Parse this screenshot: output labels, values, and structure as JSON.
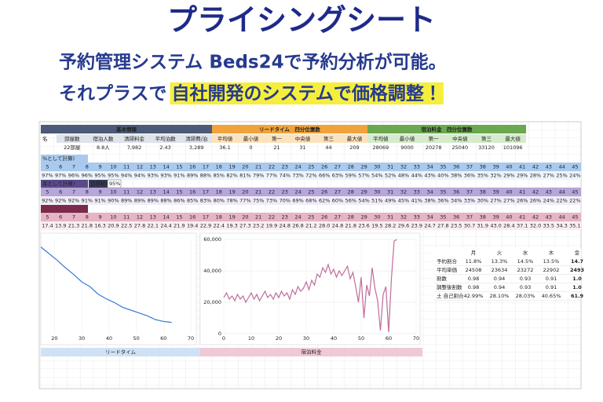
{
  "header": {
    "title": "プライシングシート",
    "line1": "予約管理システム Beds24で予約分析が可能。",
    "line2_plain": "それプラスで",
    "line2_highlight": "自社開発のシステムで価格調整！"
  },
  "sheet": {
    "name_stub": "名",
    "groups": [
      {
        "title": "基本情報",
        "headers": [
          "部屋数",
          "宿泊人数",
          "清掃料金",
          "平均泊数",
          "清掃費/泊"
        ],
        "values": [
          "22部屋",
          "8.8人",
          "7,982",
          "2.43",
          "3,289"
        ]
      },
      {
        "title": "リードタイム　四分位置数",
        "headers": [
          "平均値",
          "最小値",
          "第一",
          "中央値",
          "第三",
          "最大値"
        ],
        "values": [
          "36.1",
          "0",
          "21",
          "31",
          "44",
          "209"
        ]
      },
      {
        "title": "宿泊料金　四分位置数",
        "headers": [
          "平均値",
          "最小値",
          "第一",
          "中央値",
          "第三",
          "最大値"
        ],
        "values": [
          "28069",
          "9000",
          "20278",
          "25040",
          "33120",
          "101096"
        ]
      }
    ],
    "blocks": [
      {
        "label": "%として計算)",
        "numbers": [
          "5",
          "6",
          "7",
          "8",
          "9",
          "10",
          "11",
          "12",
          "13",
          "14",
          "15",
          "16",
          "17",
          "18",
          "19",
          "20",
          "21",
          "22",
          "23",
          "24",
          "25",
          "26",
          "27",
          "28",
          "29",
          "30",
          "31",
          "32",
          "33",
          "34",
          "35",
          "36",
          "37",
          "38",
          "39",
          "40",
          "41",
          "42",
          "43",
          "44",
          "45"
        ],
        "rates": [
          "97%",
          "97%",
          "96%",
          "96%",
          "95%",
          "95%",
          "94%",
          "94%",
          "93%",
          "93%",
          "91%",
          "89%",
          "88%",
          "85%",
          "82%",
          "81%",
          "79%",
          "77%",
          "74%",
          "73%",
          "72%",
          "66%",
          "63%",
          "59%",
          "57%",
          "54%",
          "52%",
          "48%",
          "44%",
          "43%",
          "40%",
          "38%",
          "36%",
          "35%",
          "32%",
          "29%",
          "29%",
          "28%",
          "27%",
          "25%",
          "24%"
        ]
      },
      {
        "label": "率として計算)",
        "target_label": "目標稼働率",
        "target": "95%",
        "numbers": [
          "5",
          "6",
          "7",
          "8",
          "9",
          "10",
          "11",
          "12",
          "13",
          "14",
          "15",
          "16",
          "17",
          "18",
          "19",
          "20",
          "21",
          "22",
          "23",
          "24",
          "25",
          "26",
          "27",
          "28",
          "29",
          "30",
          "31",
          "32",
          "33",
          "34",
          "35",
          "36",
          "37",
          "38",
          "39",
          "40",
          "41",
          "42",
          "43",
          "44",
          "45"
        ],
        "rates": [
          "92%",
          "92%",
          "92%",
          "91%",
          "91%",
          "90%",
          "89%",
          "89%",
          "89%",
          "88%",
          "86%",
          "85%",
          "83%",
          "80%",
          "78%",
          "77%",
          "75%",
          "73%",
          "70%",
          "69%",
          "68%",
          "62%",
          "60%",
          "56%",
          "54%",
          "51%",
          "49%",
          "45%",
          "41%",
          "38%",
          "36%",
          "34%",
          "33%",
          "30%",
          "27%",
          "27%",
          "26%",
          "26%",
          "24%",
          "22%",
          "22%"
        ]
      },
      {
        "numbers": [
          "5",
          "6",
          "7",
          "8",
          "9",
          "10",
          "11",
          "12",
          "13",
          "14",
          "15",
          "16",
          "17",
          "18",
          "19",
          "20",
          "21",
          "22",
          "23",
          "24",
          "25",
          "26",
          "27",
          "28",
          "29",
          "30",
          "31",
          "32",
          "33",
          "34",
          "35",
          "36",
          "37",
          "38",
          "39",
          "40",
          "41",
          "42",
          "43",
          "44",
          "45"
        ],
        "rates": [
          "17.4",
          "13.9",
          "21.3",
          "21.8",
          "16.3",
          "20.9",
          "22.5",
          "27.8",
          "22.1",
          "24.4",
          "21.9",
          "19.4",
          "22.9",
          "22.4",
          "19.3",
          "27.3",
          "23.2",
          "19.9",
          "24.8",
          "26.8",
          "21.2",
          "28.0",
          "24.8",
          "21.8",
          "23.6",
          "19.5",
          "28.2",
          "29.6",
          "23.9",
          "24.7",
          "27.8",
          "23.5",
          "30.7",
          "31.9",
          "43.0",
          "28.4",
          "37.1",
          "32.0",
          "33.5",
          "34.3",
          "35.1"
        ]
      }
    ],
    "weekday_table": {
      "columns": [
        "月",
        "火",
        "水",
        "木",
        "金"
      ],
      "rows": [
        {
          "label": "予約割合",
          "cells": [
            "11.8%",
            "13.3%",
            "14.5%",
            "13.5%",
            "14.7"
          ]
        },
        {
          "label": "平均単価",
          "cells": [
            "24508",
            "23634",
            "23272",
            "22902",
            "2493"
          ]
        },
        {
          "label": "割数",
          "cells": [
            "0.98",
            "0.94",
            "0.93",
            "0.91",
            "1.0"
          ]
        },
        {
          "label": "調整後割数",
          "cells": [
            "0.98",
            "0.94",
            "0.93",
            "0.91",
            "1.0"
          ]
        },
        {
          "label": "土 自己割合",
          "cells": [
            "42.99%",
            "28.10%",
            "28.03%",
            "40.65%",
            "61.9"
          ]
        }
      ]
    },
    "footer_labels": [
      "リードタイム",
      "宿泊料金"
    ]
  },
  "chart_data": [
    {
      "type": "line",
      "color": "#3a7bd5",
      "x": [
        15,
        18,
        21,
        24,
        27,
        30,
        33,
        36,
        39,
        42,
        45,
        48,
        51,
        54,
        57,
        60,
        63
      ],
      "values": [
        92,
        85,
        78,
        70,
        63,
        55,
        50,
        42,
        37,
        33,
        28,
        25,
        22,
        19,
        15,
        13,
        12
      ],
      "xlim": [
        15,
        72
      ],
      "xticks": [
        20,
        30,
        40,
        50,
        60,
        70
      ],
      "ylim": [
        0,
        100
      ]
    },
    {
      "type": "line",
      "color": "#c06c9a",
      "x": [
        0,
        1,
        2,
        3,
        4,
        5,
        6,
        7,
        8,
        9,
        10,
        11,
        12,
        13,
        14,
        15,
        16,
        17,
        18,
        19,
        20,
        21,
        22,
        23,
        24,
        25,
        26,
        27,
        28,
        29,
        30,
        31,
        32,
        33,
        34,
        35,
        36,
        37,
        38,
        39,
        40,
        41,
        42,
        43,
        44,
        45,
        46,
        47,
        48,
        49,
        50,
        51,
        52,
        53,
        54,
        55,
        56,
        57,
        58,
        59,
        60,
        61,
        62,
        63
      ],
      "values": [
        23000,
        26000,
        22000,
        24000,
        21000,
        25000,
        22000,
        24000,
        20000,
        23000,
        26000,
        22000,
        25000,
        21000,
        24000,
        27000,
        23000,
        25000,
        22000,
        26000,
        23000,
        27000,
        24000,
        26000,
        22000,
        28000,
        25000,
        30000,
        27000,
        29000,
        33000,
        28000,
        34000,
        31000,
        38000,
        36000,
        42000,
        39000,
        44000,
        38000,
        41000,
        36000,
        40000,
        37000,
        40000,
        43000,
        35000,
        39000,
        30000,
        20000,
        36000,
        10000,
        31000,
        24000,
        42000,
        29000,
        21000,
        2000,
        25000,
        30000,
        1000,
        35000,
        59000,
        60000
      ],
      "xlim": [
        0,
        70
      ],
      "xticks": [
        0,
        10,
        20,
        30,
        40,
        50,
        60,
        70
      ],
      "ylim": [
        0,
        60000
      ],
      "yticks": [
        0,
        {
          "value": 20000,
          "label": "20,000"
        },
        {
          "value": 40000,
          "label": "40,000"
        },
        {
          "value": 60000,
          "label": "60,000"
        }
      ]
    }
  ]
}
